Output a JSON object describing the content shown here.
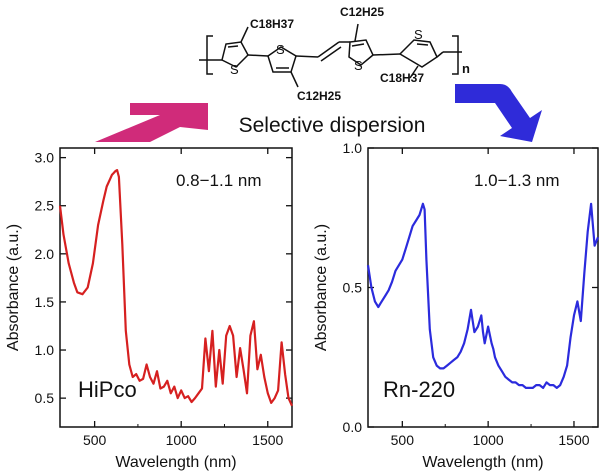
{
  "header": {
    "caption": "Selective dispersion",
    "polymer_labels": [
      "C18H37",
      "C12H25",
      "C12H25",
      "C18H37",
      "n"
    ],
    "arrow_colors": {
      "left": "#d02b7a",
      "right": "#2f2bd9"
    }
  },
  "chart_data": [
    {
      "type": "line",
      "panel_label": "HiPco",
      "annotation": "0.8−1.1 nm",
      "xlabel": "Wavelength (nm)",
      "ylabel": "Absorbance (a.u.)",
      "xlim": [
        300,
        1640
      ],
      "ylim": [
        0.2,
        3.1
      ],
      "xticks": [
        500,
        1000,
        1500
      ],
      "yticks": [
        0.5,
        1.0,
        1.5,
        2.0,
        2.5,
        3.0
      ],
      "color": "#d62020",
      "grid": false,
      "x": [
        300,
        320,
        350,
        380,
        400,
        430,
        460,
        490,
        520,
        550,
        570,
        590,
        600,
        610,
        620,
        630,
        640,
        660,
        680,
        700,
        720,
        740,
        760,
        780,
        800,
        820,
        840,
        860,
        880,
        900,
        920,
        940,
        960,
        980,
        1000,
        1020,
        1040,
        1060,
        1080,
        1100,
        1120,
        1140,
        1160,
        1180,
        1200,
        1220,
        1240,
        1260,
        1280,
        1300,
        1320,
        1340,
        1360,
        1380,
        1400,
        1420,
        1440,
        1460,
        1480,
        1500,
        1520,
        1540,
        1560,
        1580,
        1600,
        1620,
        1640
      ],
      "y": [
        2.5,
        2.2,
        1.9,
        1.7,
        1.6,
        1.58,
        1.65,
        1.9,
        2.3,
        2.55,
        2.7,
        2.78,
        2.82,
        2.84,
        2.86,
        2.87,
        2.8,
        2.1,
        1.2,
        0.85,
        0.72,
        0.75,
        0.68,
        0.7,
        0.85,
        0.72,
        0.65,
        0.78,
        0.6,
        0.62,
        0.68,
        0.55,
        0.62,
        0.5,
        0.58,
        0.5,
        0.52,
        0.46,
        0.5,
        0.55,
        0.6,
        1.12,
        0.78,
        1.2,
        0.62,
        1.0,
        0.65,
        1.15,
        1.25,
        1.15,
        0.72,
        1.02,
        0.8,
        0.55,
        1.15,
        1.3,
        0.8,
        0.95,
        0.72,
        0.55,
        0.45,
        0.5,
        0.58,
        1.08,
        0.75,
        0.5,
        0.42
      ]
    },
    {
      "type": "line",
      "panel_label": "Rn-220",
      "annotation": "1.0−1.3 nm",
      "xlabel": "Wavelength (nm)",
      "ylabel": "Absorbance (a.u.)",
      "xlim": [
        300,
        1640
      ],
      "ylim": [
        0.0,
        1.0
      ],
      "xticks": [
        500,
        1000,
        1500
      ],
      "yticks": [
        0.0,
        0.5,
        1.0
      ],
      "ytick_labels": [
        "0.0",
        "0.5",
        "1.0"
      ],
      "color": "#2b2bdd",
      "grid": false,
      "x": [
        300,
        320,
        340,
        360,
        380,
        400,
        420,
        440,
        460,
        480,
        500,
        520,
        540,
        560,
        580,
        600,
        610,
        620,
        630,
        640,
        660,
        680,
        700,
        720,
        740,
        760,
        780,
        800,
        820,
        840,
        860,
        880,
        900,
        910,
        920,
        940,
        960,
        970,
        980,
        1000,
        1020,
        1030,
        1040,
        1060,
        1080,
        1100,
        1120,
        1140,
        1160,
        1180,
        1200,
        1220,
        1240,
        1260,
        1280,
        1300,
        1320,
        1340,
        1360,
        1380,
        1400,
        1420,
        1440,
        1460,
        1480,
        1500,
        1520,
        1540,
        1560,
        1580,
        1600,
        1620,
        1640
      ],
      "y": [
        0.58,
        0.5,
        0.45,
        0.43,
        0.45,
        0.47,
        0.49,
        0.52,
        0.56,
        0.58,
        0.6,
        0.64,
        0.68,
        0.72,
        0.74,
        0.76,
        0.78,
        0.8,
        0.78,
        0.6,
        0.35,
        0.25,
        0.22,
        0.21,
        0.21,
        0.22,
        0.23,
        0.24,
        0.25,
        0.27,
        0.3,
        0.35,
        0.42,
        0.38,
        0.34,
        0.36,
        0.4,
        0.34,
        0.3,
        0.36,
        0.3,
        0.28,
        0.25,
        0.22,
        0.2,
        0.18,
        0.17,
        0.16,
        0.16,
        0.15,
        0.15,
        0.14,
        0.14,
        0.14,
        0.15,
        0.15,
        0.14,
        0.16,
        0.15,
        0.15,
        0.14,
        0.15,
        0.18,
        0.22,
        0.32,
        0.4,
        0.45,
        0.38,
        0.55,
        0.7,
        0.8,
        0.65,
        0.68
      ]
    }
  ]
}
